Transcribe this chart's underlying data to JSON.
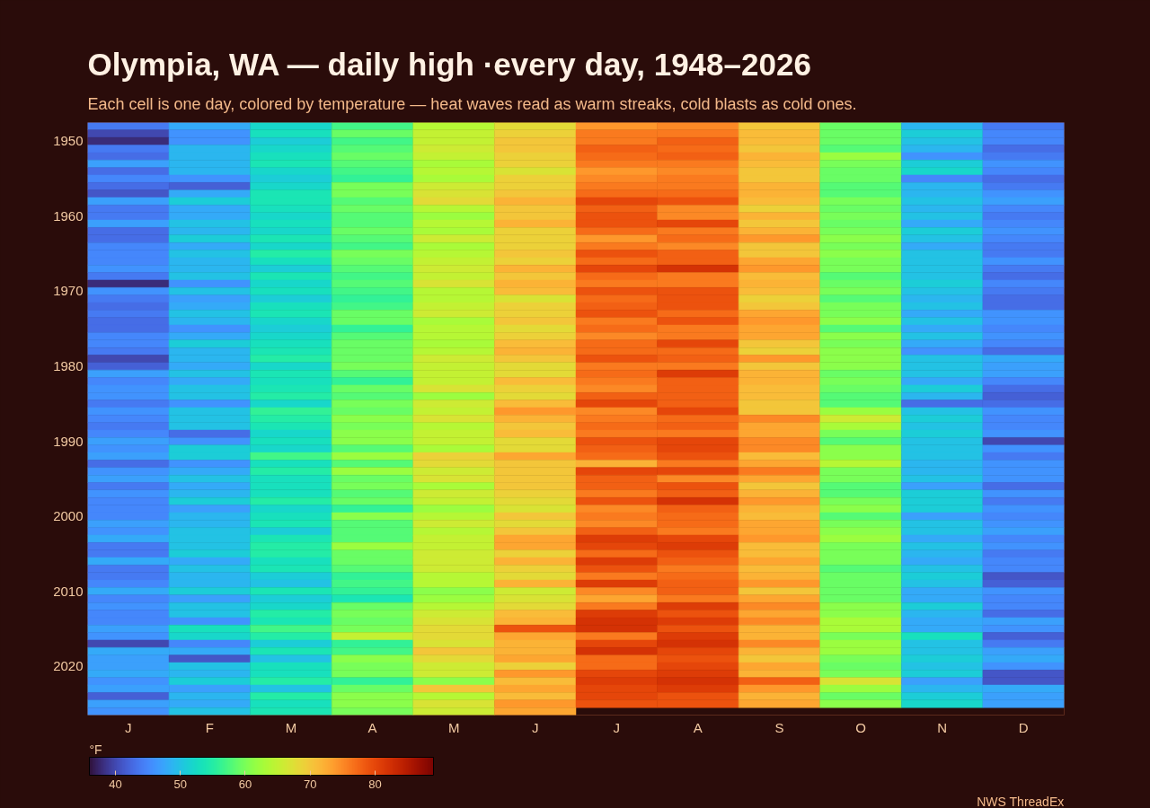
{
  "chart_data": {
    "type": "heatmap",
    "title": "Olympia, WA — daily high ·every day, 1948–2026",
    "subtitle": "Each cell is one day, colored by temperature — heat waves read as warm streaks, cold blasts as cold ones.",
    "clabel": "°F",
    "annotations": [
      "NWS ThreadEx"
    ],
    "categories": [
      "J",
      "F",
      "M",
      "A",
      "M",
      "J",
      "J",
      "A",
      "S",
      "O",
      "N",
      "D"
    ],
    "y_categories": [
      null,
      null,
      "1950",
      null,
      null,
      null,
      null,
      null,
      null,
      null,
      null,
      null,
      "1960",
      null,
      null,
      null,
      null,
      null,
      null,
      null,
      null,
      null,
      "1970",
      null,
      null,
      null,
      null,
      null,
      null,
      null,
      null,
      null,
      "1980",
      null,
      null,
      null,
      null,
      null,
      null,
      null,
      null,
      null,
      "1990",
      null,
      null,
      null,
      null,
      null,
      null,
      null,
      null,
      null,
      "2000",
      null,
      null,
      null,
      null,
      null,
      null,
      null,
      null,
      null,
      "2010",
      null,
      null,
      null,
      null,
      null,
      null,
      null,
      null,
      null,
      "2020",
      null,
      null,
      null,
      null,
      null,
      null
    ],
    "clim": [
      36,
      89
    ],
    "cticks": [
      40,
      50,
      60,
      70,
      80
    ],
    "cells": [
      [
        44,
        48,
        52,
        57,
        64,
        68,
        74,
        75,
        70,
        59,
        49,
        44
      ],
      [
        40,
        46,
        53,
        59,
        65,
        69,
        76,
        76,
        71,
        59,
        51,
        45
      ],
      [
        38,
        46,
        51,
        57,
        65,
        70,
        76,
        78,
        71,
        59,
        50,
        45
      ],
      [
        44,
        49,
        52,
        58,
        66,
        70,
        78,
        77,
        70,
        58,
        49,
        43
      ],
      [
        43,
        49,
        53,
        59,
        65,
        69,
        77,
        78,
        72,
        62,
        46,
        44
      ],
      [
        47,
        49,
        54,
        58,
        63,
        69,
        76,
        76,
        71,
        60,
        51,
        46
      ],
      [
        43,
        49,
        52,
        57,
        64,
        67,
        74,
        75,
        70,
        59,
        52,
        45
      ],
      [
        45,
        46,
        51,
        56,
        63,
        69,
        75,
        76,
        70,
        59,
        45,
        43
      ],
      [
        43,
        42,
        52,
        60,
        66,
        69,
        76,
        76,
        72,
        58,
        49,
        44
      ],
      [
        41,
        48,
        54,
        60,
        67,
        70,
        77,
        77,
        72,
        58,
        49,
        46
      ],
      [
        47,
        51,
        54,
        58,
        68,
        72,
        80,
        79,
        71,
        60,
        50,
        47
      ],
      [
        44,
        48,
        53,
        59,
        64,
        70,
        78,
        75,
        69,
        59,
        49,
        45
      ],
      [
        44,
        48,
        52,
        58,
        62,
        70,
        79,
        75,
        72,
        60,
        50,
        44
      ],
      [
        47,
        50,
        53,
        58,
        64,
        72,
        79,
        80,
        70,
        59,
        48,
        45
      ],
      [
        43,
        49,
        52,
        59,
        63,
        69,
        77,
        76,
        72,
        60,
        51,
        46
      ],
      [
        43,
        51,
        54,
        58,
        66,
        69,
        74,
        77,
        74,
        61,
        50,
        45
      ],
      [
        45,
        48,
        52,
        57,
        63,
        69,
        76,
        75,
        70,
        60,
        48,
        44
      ],
      [
        45,
        50,
        55,
        60,
        64,
        70,
        79,
        78,
        70,
        61,
        50,
        44
      ],
      [
        45,
        49,
        53,
        59,
        65,
        69,
        77,
        78,
        73,
        60,
        50,
        46
      ],
      [
        46,
        49,
        51,
        58,
        66,
        72,
        80,
        82,
        74,
        60,
        50,
        44
      ],
      [
        44,
        50,
        54,
        57,
        65,
        70,
        77,
        76,
        71,
        58,
        50,
        43
      ],
      [
        38,
        46,
        52,
        58,
        67,
        72,
        76,
        76,
        72,
        59,
        51,
        45
      ],
      [
        46,
        50,
        53,
        57,
        64,
        71,
        79,
        79,
        71,
        60,
        50,
        44
      ],
      [
        44,
        47,
        51,
        56,
        64,
        67,
        77,
        79,
        69,
        58,
        49,
        43
      ],
      [
        43,
        48,
        53,
        57,
        65,
        69,
        78,
        79,
        70,
        60,
        50,
        43
      ],
      [
        44,
        50,
        54,
        59,
        66,
        69,
        79,
        77,
        73,
        60,
        48,
        46
      ],
      [
        43,
        49,
        52,
        59,
        63,
        70,
        76,
        79,
        74,
        61,
        50,
        46
      ],
      [
        43,
        46,
        51,
        56,
        64,
        68,
        77,
        76,
        73,
        58,
        48,
        45
      ],
      [
        45,
        48,
        52,
        58,
        64,
        69,
        75,
        76,
        73,
        61,
        50,
        46
      ],
      [
        45,
        51,
        53,
        59,
        63,
        71,
        77,
        80,
        70,
        60,
        48,
        45
      ],
      [
        44,
        49,
        54,
        59,
        64,
        72,
        77,
        77,
        69,
        61,
        46,
        43
      ],
      [
        40,
        49,
        55,
        59,
        66,
        70,
        79,
        78,
        74,
        61,
        50,
        48
      ],
      [
        42,
        48,
        52,
        60,
        65,
        68,
        76,
        76,
        70,
        61,
        50,
        47
      ],
      [
        47,
        50,
        54,
        58,
        65,
        68,
        77,
        81,
        72,
        59,
        50,
        47
      ],
      [
        45,
        48,
        53,
        56,
        65,
        71,
        76,
        78,
        72,
        60,
        48,
        45
      ],
      [
        46,
        50,
        54,
        59,
        67,
        69,
        75,
        78,
        71,
        59,
        51,
        43
      ],
      [
        46,
        50,
        55,
        58,
        62,
        68,
        78,
        78,
        71,
        58,
        49,
        42
      ],
      [
        44,
        46,
        52,
        60,
        66,
        71,
        80,
        78,
        70,
        58,
        43,
        43
      ],
      [
        46,
        50,
        56,
        59,
        65,
        74,
        75,
        80,
        70,
        62,
        50,
        46
      ],
      [
        45,
        50,
        55,
        61,
        67,
        72,
        76,
        77,
        75,
        66,
        51,
        45
      ],
      [
        44,
        50,
        54,
        60,
        64,
        70,
        77,
        78,
        73,
        63,
        50,
        45
      ],
      [
        45,
        43,
        52,
        61,
        65,
        71,
        76,
        76,
        73,
        60,
        51,
        46
      ],
      [
        47,
        46,
        53,
        61,
        65,
        68,
        79,
        80,
        75,
        58,
        50,
        40
      ],
      [
        46,
        51,
        52,
        58,
        63,
        68,
        78,
        80,
        75,
        61,
        50,
        46
      ],
      [
        47,
        51,
        57,
        62,
        69,
        73,
        77,
        79,
        71,
        61,
        50,
        44
      ],
      [
        43,
        46,
        53,
        58,
        68,
        70,
        72,
        76,
        73,
        64,
        49,
        46
      ],
      [
        46,
        48,
        55,
        62,
        66,
        70,
        80,
        80,
        76,
        60,
        49,
        46
      ],
      [
        47,
        50,
        53,
        59,
        67,
        70,
        78,
        75,
        73,
        60,
        50,
        46
      ],
      [
        44,
        48,
        53,
        60,
        63,
        70,
        78,
        79,
        70,
        58,
        47,
        43
      ],
      [
        46,
        49,
        53,
        58,
        66,
        69,
        76,
        78,
        72,
        58,
        51,
        46
      ],
      [
        45,
        51,
        55,
        59,
        65,
        68,
        79,
        82,
        74,
        60,
        51,
        44
      ],
      [
        45,
        47,
        52,
        56,
        62,
        67,
        75,
        78,
        72,
        61,
        51,
        46
      ],
      [
        45,
        49,
        53,
        61,
        64,
        70,
        76,
        77,
        71,
        58,
        47,
        45
      ],
      [
        47,
        49,
        54,
        58,
        66,
        68,
        75,
        77,
        73,
        60,
        50,
        46
      ],
      [
        46,
        50,
        51,
        58,
        64,
        70,
        78,
        76,
        73,
        61,
        50,
        47
      ],
      [
        48,
        50,
        54,
        58,
        65,
        73,
        81,
        80,
        74,
        62,
        48,
        45
      ],
      [
        44,
        50,
        55,
        62,
        65,
        73,
        80,
        81,
        71,
        60,
        50,
        46
      ],
      [
        44,
        51,
        55,
        59,
        66,
        69,
        77,
        79,
        71,
        60,
        49,
        44
      ],
      [
        48,
        48,
        53,
        59,
        66,
        72,
        81,
        78,
        73,
        60,
        48,
        45
      ],
      [
        44,
        50,
        54,
        58,
        66,
        69,
        79,
        76,
        71,
        58,
        50,
        45
      ],
      [
        44,
        49,
        51,
        56,
        64,
        68,
        76,
        77,
        72,
        59,
        51,
        41
      ],
      [
        45,
        49,
        50,
        57,
        64,
        72,
        81,
        78,
        74,
        59,
        50,
        42
      ],
      [
        48,
        51,
        54,
        56,
        61,
        66,
        75,
        78,
        70,
        59,
        48,
        46
      ],
      [
        45,
        47,
        51,
        54,
        62,
        67,
        73,
        76,
        73,
        59,
        48,
        45
      ],
      [
        46,
        50,
        52,
        59,
        64,
        68,
        76,
        81,
        75,
        61,
        51,
        45
      ],
      [
        45,
        50,
        55,
        60,
        66,
        71,
        81,
        79,
        73,
        61,
        49,
        43
      ],
      [
        45,
        46,
        54,
        59,
        67,
        72,
        82,
        81,
        75,
        63,
        48,
        47
      ],
      [
        47,
        53,
        57,
        60,
        68,
        79,
        82,
        79,
        72,
        63,
        48,
        46
      ],
      [
        46,
        52,
        55,
        65,
        68,
        73,
        76,
        81,
        72,
        60,
        53,
        42
      ],
      [
        40,
        45,
        51,
        56,
        67,
        72,
        80,
        82,
        75,
        62,
        50,
        44
      ],
      [
        48,
        48,
        54,
        57,
        70,
        72,
        82,
        80,
        72,
        62,
        50,
        47
      ],
      [
        47,
        41,
        50,
        61,
        68,
        73,
        77,
        79,
        70,
        60,
        51,
        48
      ],
      [
        47,
        50,
        53,
        60,
        66,
        69,
        77,
        80,
        73,
        59,
        50,
        46
      ],
      [
        48,
        49,
        53,
        60,
        66,
        74,
        80,
        81,
        72,
        60,
        51,
        41
      ],
      [
        46,
        51,
        55,
        56,
        61,
        71,
        81,
        82,
        78,
        67,
        47,
        41
      ],
      [
        47,
        47,
        50,
        59,
        70,
        73,
        80,
        81,
        74,
        62,
        49,
        48
      ],
      [
        42,
        49,
        55,
        61,
        64,
        71,
        80,
        79,
        72,
        59,
        51,
        47
      ],
      [
        47,
        48,
        53,
        61,
        67,
        74,
        79,
        79,
        73,
        61,
        52,
        47
      ],
      [
        46,
        50,
        54,
        60,
        66,
        73,
        null,
        null,
        null,
        null,
        null,
        null
      ]
    ]
  }
}
